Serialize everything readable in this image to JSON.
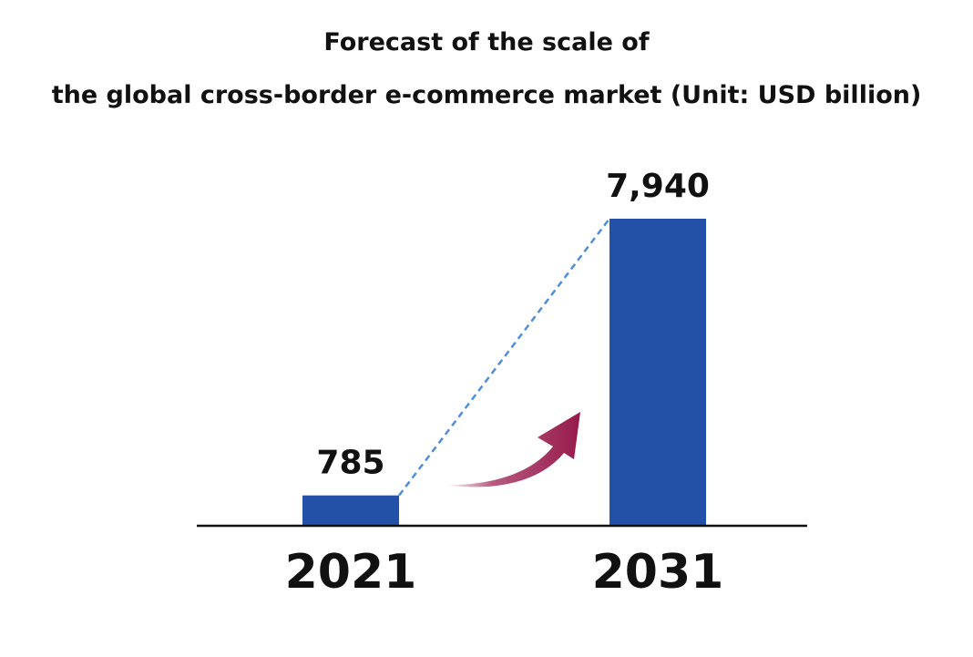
{
  "chart_data": {
    "type": "bar",
    "title_lines": [
      "Forecast of the scale of",
      "the global cross-border e-commerce market (Unit: USD billion)"
    ],
    "categories": [
      "2021",
      "2031"
    ],
    "values": [
      785,
      7940
    ],
    "value_labels": [
      "785",
      "7,940"
    ],
    "ylim": [
      0,
      7940
    ],
    "grid": false,
    "legend": "none",
    "colors": {
      "bar": "#2451a8",
      "trend_line": "#4f8fd9",
      "arrow": "#961a4b",
      "axis": "#111111"
    }
  }
}
